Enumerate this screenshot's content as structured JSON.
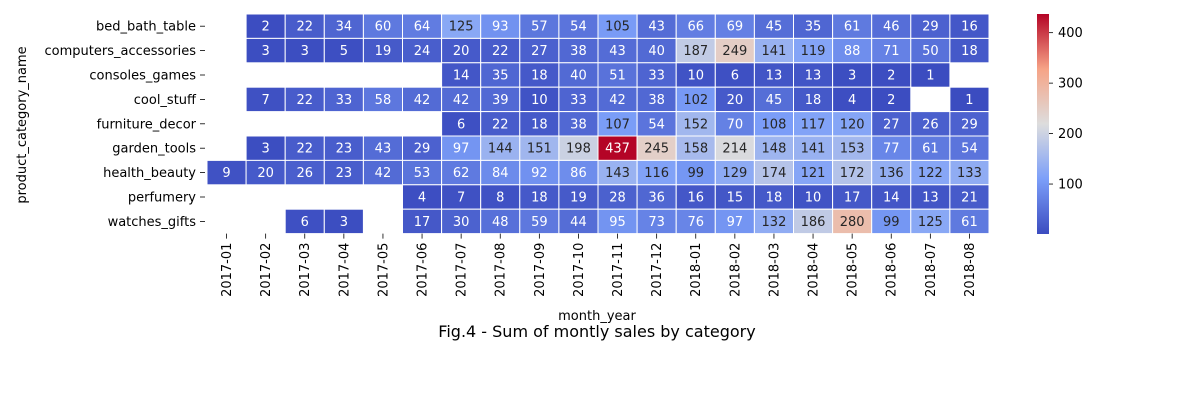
{
  "chart_data": {
    "type": "heatmap",
    "title": "Fig.4  - Sum of montly sales by category",
    "xlabel": "month_year",
    "ylabel": "product_category_name",
    "x": [
      "2017-01",
      "2017-02",
      "2017-03",
      "2017-04",
      "2017-05",
      "2017-06",
      "2017-07",
      "2017-08",
      "2017-09",
      "2017-10",
      "2017-11",
      "2017-12",
      "2018-01",
      "2018-02",
      "2018-03",
      "2018-04",
      "2018-05",
      "2018-06",
      "2018-07",
      "2018-08"
    ],
    "y": [
      "bed_bath_table",
      "computers_accessories",
      "consoles_games",
      "cool_stuff",
      "furniture_decor",
      "garden_tools",
      "health_beauty",
      "perfumery",
      "watches_gifts"
    ],
    "values": [
      [
        null,
        2,
        22,
        34,
        60,
        64,
        125,
        93,
        57,
        54,
        105,
        43,
        66,
        69,
        45,
        35,
        61,
        46,
        29,
        16
      ],
      [
        null,
        3,
        3,
        5,
        19,
        24,
        20,
        22,
        27,
        38,
        43,
        40,
        187,
        249,
        141,
        119,
        88,
        71,
        50,
        18
      ],
      [
        null,
        null,
        null,
        null,
        null,
        null,
        14,
        35,
        18,
        40,
        51,
        33,
        10,
        6,
        13,
        13,
        3,
        2,
        1,
        null
      ],
      [
        null,
        7,
        22,
        33,
        58,
        42,
        42,
        39,
        10,
        33,
        42,
        38,
        102,
        20,
        45,
        18,
        4,
        2,
        null,
        1
      ],
      [
        null,
        null,
        null,
        null,
        null,
        null,
        6,
        22,
        18,
        38,
        107,
        54,
        152,
        70,
        108,
        117,
        120,
        27,
        26,
        29
      ],
      [
        null,
        3,
        22,
        23,
        43,
        29,
        97,
        144,
        151,
        198,
        437,
        245,
        158,
        214,
        148,
        141,
        153,
        77,
        61,
        54
      ],
      [
        9,
        20,
        26,
        23,
        42,
        53,
        62,
        84,
        92,
        86,
        143,
        116,
        99,
        129,
        174,
        121,
        172,
        136,
        122,
        133
      ],
      [
        null,
        null,
        null,
        null,
        null,
        4,
        7,
        8,
        18,
        19,
        28,
        36,
        16,
        15,
        18,
        10,
        17,
        14,
        13,
        21
      ],
      [
        null,
        null,
        6,
        3,
        null,
        17,
        30,
        48,
        59,
        44,
        95,
        73,
        76,
        97,
        132,
        186,
        280,
        99,
        125,
        61
      ]
    ],
    "vmin": 1,
    "vmax": 437,
    "colormap": "coolwarm",
    "colorbar_ticks": [
      100,
      200,
      300,
      400
    ],
    "annotations": true
  }
}
